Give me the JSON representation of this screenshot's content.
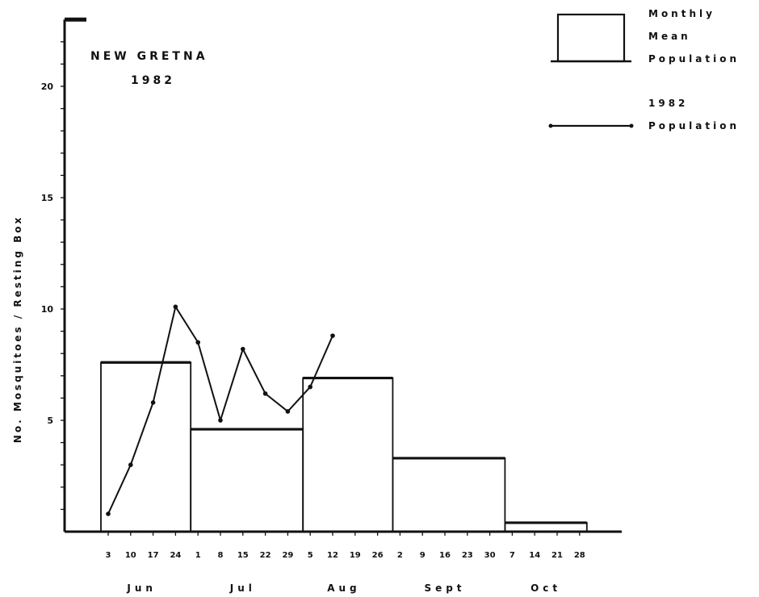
{
  "chart_data": {
    "type": "bar",
    "title_lines": [
      "NEW GRETNA",
      "1982"
    ],
    "ylabel": "No. Mosquitoes / Resting Box",
    "ylim": [
      0,
      23
    ],
    "y_ticks": [
      5,
      10,
      15,
      20
    ],
    "grid": false,
    "legend_position": "top-right",
    "legend": {
      "bar_label_lines": [
        "Monthly",
        "Mean",
        "Population"
      ],
      "line_label_lines": [
        "1982",
        "Population"
      ]
    },
    "x_ticks": [
      {
        "month": "Jun",
        "day": "3"
      },
      {
        "month": "Jun",
        "day": "10"
      },
      {
        "month": "Jun",
        "day": "17"
      },
      {
        "month": "Jun",
        "day": "24"
      },
      {
        "month": "Jul",
        "day": "1"
      },
      {
        "month": "Jul",
        "day": "8"
      },
      {
        "month": "Jul",
        "day": "15"
      },
      {
        "month": "Jul",
        "day": "22"
      },
      {
        "month": "Jul",
        "day": "29"
      },
      {
        "month": "Aug",
        "day": "5"
      },
      {
        "month": "Aug",
        "day": "12"
      },
      {
        "month": "Aug",
        "day": "19"
      },
      {
        "month": "Aug",
        "day": "26"
      },
      {
        "month": "Sept",
        "day": "2"
      },
      {
        "month": "Sept",
        "day": "9"
      },
      {
        "month": "Sept",
        "day": "16"
      },
      {
        "month": "Sept",
        "day": "23"
      },
      {
        "month": "Sept",
        "day": "30"
      },
      {
        "month": "Oct",
        "day": "7"
      },
      {
        "month": "Oct",
        "day": "14"
      },
      {
        "month": "Oct",
        "day": "21"
      },
      {
        "month": "Oct",
        "day": "28"
      }
    ],
    "months": [
      "Jun",
      "Jul",
      "Aug",
      "Sept",
      "Oct"
    ],
    "series": [
      {
        "kind": "bar",
        "categories": [
          "Jun",
          "Jul",
          "Aug",
          "Sept",
          "Oct"
        ],
        "values": [
          7.6,
          4.6,
          6.9,
          3.3,
          0.4
        ]
      },
      {
        "kind": "line",
        "points": [
          {
            "date": "Jun 3",
            "value": 0.8
          },
          {
            "date": "Jun 10",
            "value": 3.0
          },
          {
            "date": "Jun 17",
            "value": 5.8
          },
          {
            "date": "Jun 24",
            "value": 10.1
          },
          {
            "date": "Jul 1",
            "value": 8.5
          },
          {
            "date": "Jul 8",
            "value": 5.0
          },
          {
            "date": "Jul 15",
            "value": 8.2
          },
          {
            "date": "Jul 22",
            "value": 6.2
          },
          {
            "date": "Jul 29",
            "value": 5.4
          },
          {
            "date": "Aug 5",
            "value": 6.5
          },
          {
            "date": "Aug 12",
            "value": 8.8
          }
        ]
      }
    ]
  }
}
